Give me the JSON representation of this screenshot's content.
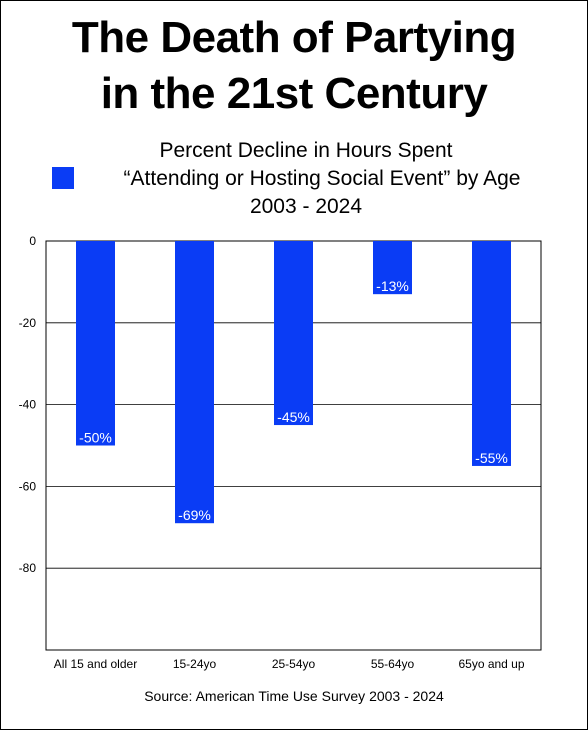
{
  "title_lines": [
    "The Death of Partying",
    "in the 21st Century"
  ],
  "subtitle_lines": [
    "Percent Decline in Hours Spent",
    "“Attending or Hosting Social Event” by Age",
    "2003 - 2024"
  ],
  "source": "Source: American Time Use Survey 2003 - 2024",
  "colors": {
    "bar": "#0a3cf5",
    "grid": "#000000",
    "label": "#ffffff"
  },
  "chart_data": {
    "type": "bar",
    "categories": [
      "All 15 and older",
      "15-24yo",
      "25-54yo",
      "55-64yo",
      "65yo and up"
    ],
    "values": [
      -50,
      -69,
      -45,
      -13,
      -55
    ],
    "data_labels": [
      "-50%",
      "-69%",
      "-45%",
      "-13%",
      "-55%"
    ],
    "y_ticks": [
      "0",
      "-20",
      "-40",
      "-60",
      "-80"
    ],
    "y_tick_values": [
      0,
      -20,
      -40,
      -60,
      -80
    ],
    "ylim": [
      -100,
      0
    ],
    "grid": true,
    "legend_placement": "left of subtitle"
  }
}
